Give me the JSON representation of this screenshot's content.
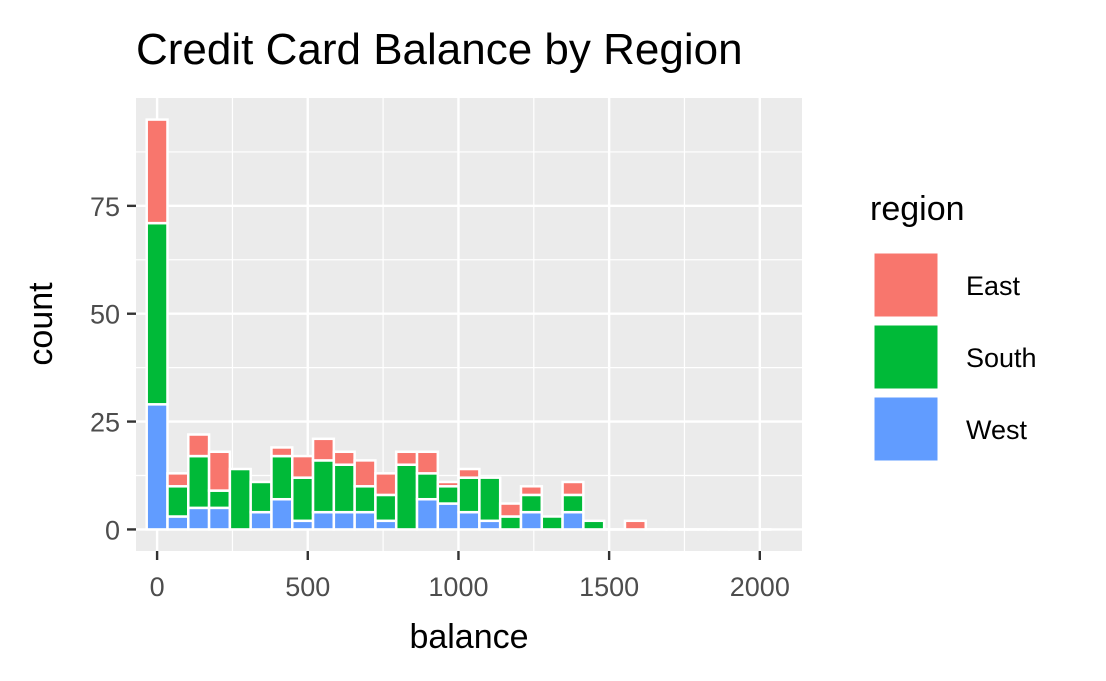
{
  "chart_data": {
    "type": "bar",
    "stacked": true,
    "title": "Credit Card Balance by Region",
    "xlabel": "balance",
    "ylabel": "count",
    "xlim": [
      -70,
      2140
    ],
    "ylim": [
      -5,
      100
    ],
    "x_ticks": [
      0,
      500,
      1000,
      1500,
      2000
    ],
    "x_tick_labels": [
      "0",
      "500",
      "1000",
      "1500",
      "2000"
    ],
    "y_ticks": [
      0,
      25,
      50,
      75
    ],
    "y_tick_labels": [
      "0",
      "25",
      "50",
      "75"
    ],
    "grid": true,
    "legend": {
      "title": "region",
      "position": "right"
    },
    "bin_width": 69,
    "x": [
      0,
      69,
      138,
      207,
      276,
      345,
      414,
      483,
      552,
      621,
      690,
      759,
      828,
      897,
      966,
      1035,
      1104,
      1173,
      1242,
      1311,
      1380,
      1449,
      1518,
      1587,
      1656,
      1725,
      1794,
      1863,
      1932,
      2001
    ],
    "series": [
      {
        "name": "West",
        "color": "#619CFF",
        "values": [
          29,
          3,
          5,
          5,
          0,
          4,
          7,
          2,
          4,
          4,
          4,
          2,
          0,
          7,
          6,
          4,
          2,
          0,
          4,
          0,
          4,
          0,
          0,
          0,
          0,
          0,
          0,
          0,
          0,
          0
        ]
      },
      {
        "name": "South",
        "color": "#00BA38",
        "values": [
          42,
          7,
          12,
          4,
          14,
          7,
          10,
          10,
          12,
          11,
          6,
          6,
          15,
          6,
          4,
          8,
          10,
          3,
          4,
          3,
          4,
          2,
          0,
          0,
          0,
          0,
          0,
          0,
          0,
          0
        ]
      },
      {
        "name": "East",
        "color": "#F8766D",
        "values": [
          24,
          3,
          5,
          9,
          0,
          0,
          2,
          5,
          5,
          3,
          6,
          5,
          3,
          5,
          1,
          2,
          0,
          3,
          2,
          0,
          3,
          0,
          0,
          2,
          0,
          0,
          0,
          0,
          0,
          0
        ]
      }
    ]
  }
}
